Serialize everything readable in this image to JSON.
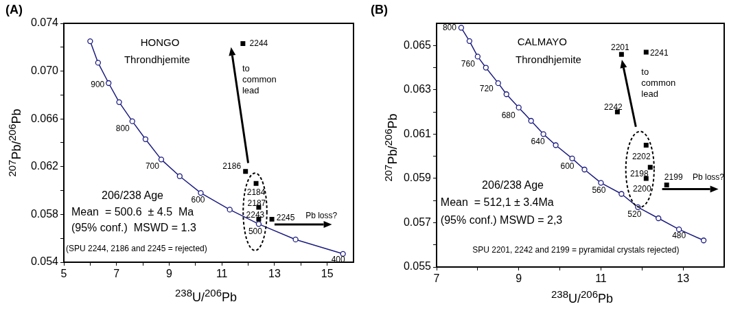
{
  "chart_data": [
    {
      "type": "scatter",
      "title": "(A)",
      "xlabel": "$^{238}$U/$^{206}$Pb",
      "ylabel": "$^{207}$Pb/$^{206}$Pb",
      "xlim": [
        5,
        16
      ],
      "xticks": [
        5,
        {
          "value": 6,
          "label": null
        },
        7,
        {
          "value": 8,
          "label": null
        },
        9,
        {
          "value": 10,
          "label": null
        },
        11,
        {
          "value": 12,
          "label": null
        },
        13,
        {
          "value": 14,
          "label": null
        },
        15
      ],
      "ylim": [
        0.054,
        0.074
      ],
      "yticks": [
        {
          "value": 0.054,
          "label": "0.054"
        },
        {
          "value": 0.056,
          "label": null
        },
        {
          "value": 0.058,
          "label": "0.058"
        },
        {
          "value": 0.06,
          "label": null
        },
        {
          "value": 0.062,
          "label": "0.062"
        },
        {
          "value": 0.064,
          "label": null
        },
        {
          "value": 0.066,
          "label": "0.066"
        },
        {
          "value": 0.068,
          "label": null
        },
        {
          "value": 0.07,
          "label": "0.070"
        },
        {
          "value": 0.072,
          "label": null
        },
        {
          "value": 0.074,
          "label": "0.074"
        }
      ],
      "grid": false,
      "legend": false,
      "series": [
        {
          "type": "line",
          "marker": "circle",
          "color": "#1a1a80",
          "x": [
            6.0,
            6.3,
            6.7,
            7.1,
            7.6,
            8.1,
            8.7,
            9.4,
            10.2,
            11.3,
            12.4,
            13.8,
            15.6
          ],
          "values": [
            0.0725,
            0.0707,
            0.069,
            0.0674,
            0.0658,
            0.0643,
            0.0626,
            0.0612,
            0.0598,
            0.0584,
            0.0572,
            0.0559,
            0.0547
          ]
        },
        {
          "type": "scatter",
          "marker": "square",
          "color": "#000000",
          "x": [
            11.8,
            11.9,
            12.3,
            12.4,
            12.4,
            12.9
          ],
          "values": [
            0.0723,
            0.0616,
            0.0606,
            0.0586,
            0.0576,
            0.0576
          ]
        }
      ],
      "annotations": [
        "HONGO",
        "Throndhjemite",
        "to common lead",
        "Pb loss?",
        "206/238 Age",
        "Mean  = 500.6  ± 4.5  Ma",
        "(95% conf.)  MSWD = 1.3",
        "(SPU 2244, 2186 and 2245 = rejected)",
        {
          "text": "900",
          "x": 6.7,
          "y": 0.069
        },
        {
          "text": "800",
          "x": 7.6,
          "y": 0.0658
        },
        {
          "text": "700",
          "x": 8.7,
          "y": 0.0626
        },
        {
          "text": "600",
          "x": 10.2,
          "y": 0.0598
        },
        {
          "text": "500",
          "x": 12.4,
          "y": 0.0572
        },
        {
          "text": "400",
          "x": 15.6,
          "y": 0.0547
        },
        {
          "text": "2244",
          "x": 11.8,
          "y": 0.0723
        },
        {
          "text": "2186",
          "x": 11.9,
          "y": 0.0616
        },
        {
          "text": "2184",
          "x": 12.3,
          "y": 0.0606
        },
        {
          "text": "2187",
          "x": 12.4,
          "y": 0.0586
        },
        {
          "text": "2243",
          "x": 12.4,
          "y": 0.0576
        },
        {
          "text": "2245",
          "x": 12.9,
          "y": 0.0576
        }
      ]
    },
    {
      "type": "scatter",
      "title": "(B)",
      "xlabel": "$^{238}$U/$^{206}$Pb",
      "ylabel": "$^{207}$Pb/$^{206}$Pb",
      "xlim": [
        7,
        14
      ],
      "xticks": [
        7,
        {
          "value": 8,
          "label": null
        },
        9,
        {
          "value": 10,
          "label": null
        },
        11,
        {
          "value": 12,
          "label": null
        },
        13
      ],
      "ylim": [
        0.055,
        0.066
      ],
      "yticks": [
        0.055,
        {
          "value": 0.056,
          "label": null
        },
        0.057,
        {
          "value": 0.058,
          "label": null
        },
        0.059,
        {
          "value": 0.06,
          "label": null
        },
        0.061,
        {
          "value": 0.062,
          "label": null
        },
        0.063,
        {
          "value": 0.064,
          "label": null
        },
        0.065
      ],
      "grid": false,
      "legend": false,
      "series": [
        {
          "type": "line",
          "marker": "circle",
          "color": "#1a1a80",
          "x": [
            7.6,
            7.8,
            8.0,
            8.2,
            8.5,
            8.7,
            9.0,
            9.3,
            9.6,
            9.9,
            10.3,
            10.6,
            11.0,
            11.5,
            11.9,
            12.4,
            12.9,
            13.5
          ],
          "values": [
            0.0658,
            0.0652,
            0.0645,
            0.064,
            0.0633,
            0.0628,
            0.0622,
            0.0616,
            0.061,
            0.0605,
            0.0599,
            0.0594,
            0.0588,
            0.0583,
            0.0577,
            0.0572,
            0.0567,
            0.0562
          ]
        },
        {
          "type": "scatter",
          "marker": "square",
          "color": "#000000",
          "x": [
            11.5,
            12.1,
            11.4,
            12.1,
            12.2,
            12.1,
            12.6
          ],
          "values": [
            0.0646,
            0.0647,
            0.062,
            0.0605,
            0.0595,
            0.059,
            0.0587
          ]
        }
      ],
      "annotations": [
        "CALMAYO",
        "Throndhjemite",
        "to common lead",
        "Pb loss?",
        "206/238 Age",
        "Mean  = 512,1 ± 3.4Ma",
        "(95% conf.) MSWD = 2,3",
        "SPU 2201, 2242 and 2199 = pyramidal crystals rejected)",
        {
          "text": "800",
          "x": 7.6,
          "y": 0.0658
        },
        {
          "text": "760",
          "x": 8.0,
          "y": 0.0645
        },
        {
          "text": "720",
          "x": 8.5,
          "y": 0.0633
        },
        {
          "text": "680",
          "x": 9.0,
          "y": 0.0622
        },
        {
          "text": "640",
          "x": 9.6,
          "y": 0.061
        },
        {
          "text": "600",
          "x": 10.3,
          "y": 0.0599
        },
        {
          "text": "560",
          "x": 11.0,
          "y": 0.0588
        },
        {
          "text": "520",
          "x": 11.9,
          "y": 0.0577
        },
        {
          "text": "480",
          "x": 12.9,
          "y": 0.0567
        },
        {
          "text": "2201",
          "x": 11.5,
          "y": 0.0646
        },
        {
          "text": "2241",
          "x": 12.1,
          "y": 0.0647
        },
        {
          "text": "2242",
          "x": 11.4,
          "y": 0.062
        },
        {
          "text": "2202",
          "x": 12.1,
          "y": 0.0605
        },
        {
          "text": "2198",
          "x": 12.1,
          "y": 0.059
        },
        {
          "text": "2200",
          "x": 12.2,
          "y": 0.0595
        },
        {
          "text": "2199",
          "x": 12.6,
          "y": 0.0587
        }
      ]
    }
  ]
}
